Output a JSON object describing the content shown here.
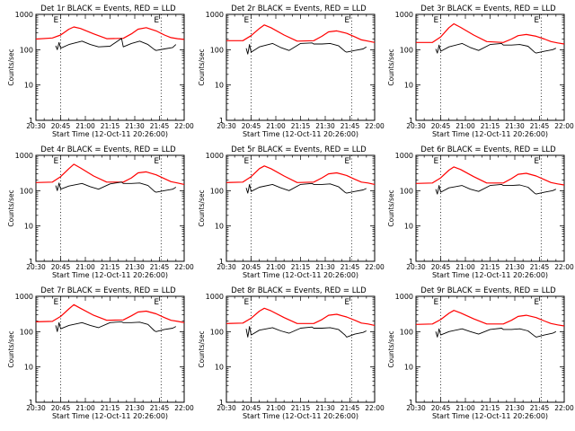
{
  "colors": {
    "events": "#000000",
    "lld": "#ff0000",
    "axis": "#000000",
    "background": "#ffffff"
  },
  "chart_data": {
    "type": "line",
    "scale": "log",
    "ylim": [
      1,
      1000
    ],
    "ylabel": "Counts/sec",
    "xlabel": "Start Time (12-Oct-11 20:26:00)",
    "x_ticks": [
      "20:30",
      "20:45",
      "21:00",
      "21:15",
      "21:30",
      "21:45",
      "22:00"
    ],
    "x_tick_minutes": [
      0,
      15,
      30,
      45,
      60,
      75,
      90
    ],
    "x_range_minutes": [
      0,
      90
    ],
    "y_ticks": [
      "1",
      "10",
      "100",
      "1000"
    ],
    "y_tick_values": [
      1,
      10,
      100,
      1000
    ],
    "event_markers_minutes": [
      15,
      76
    ],
    "event_marker_label": "E",
    "lld_times": [
      0,
      10,
      15,
      20,
      23,
      27,
      35,
      43,
      53,
      58,
      62,
      67,
      73,
      78,
      82,
      86,
      90
    ],
    "events_times": [
      12,
      13,
      14,
      15,
      20,
      28,
      33,
      38,
      45,
      52,
      53,
      58,
      63,
      68,
      72,
      73,
      78,
      83,
      85
    ],
    "panels": [
      {
        "title": "Det 1r BLACK = Events, RED = LLD",
        "lld": [
          200,
          215,
          260,
          380,
          440,
          400,
          280,
          205,
          210,
          280,
          380,
          420,
          340,
          260,
          220,
          205,
          195
        ],
        "events": [
          130,
          100,
          160,
          110,
          140,
          175,
          140,
          120,
          125,
          210,
          120,
          150,
          175,
          140,
          100,
          95,
          105,
          115,
          140
        ]
      },
      {
        "title": "Det 2r BLACK = Events, RED = LLD",
        "lld": [
          180,
          180,
          250,
          400,
          500,
          420,
          260,
          175,
          180,
          240,
          320,
          340,
          290,
          230,
          190,
          175,
          160
        ],
        "events": [
          110,
          75,
          140,
          85,
          120,
          150,
          115,
          95,
          150,
          155,
          145,
          145,
          150,
          130,
          90,
          85,
          95,
          105,
          120
        ]
      },
      {
        "title": "Det 3r BLACK = Events, RED = LLD",
        "lld": [
          160,
          160,
          230,
          420,
          540,
          430,
          260,
          170,
          160,
          200,
          250,
          270,
          240,
          200,
          170,
          155,
          145
        ],
        "events": [
          105,
          80,
          135,
          90,
          120,
          150,
          115,
          95,
          140,
          150,
          135,
          135,
          140,
          125,
          85,
          80,
          90,
          100,
          110
        ]
      },
      {
        "title": "Det 4r BLACK = Events, RED = LLD",
        "lld": [
          170,
          175,
          250,
          420,
          560,
          440,
          260,
          175,
          175,
          230,
          320,
          340,
          280,
          220,
          180,
          165,
          150
        ],
        "events": [
          140,
          100,
          165,
          110,
          135,
          160,
          130,
          110,
          155,
          175,
          160,
          160,
          165,
          140,
          95,
          90,
          100,
          110,
          125
        ]
      },
      {
        "title": "Det 5r BLACK = Events, RED = LLD",
        "lld": [
          170,
          175,
          250,
          420,
          500,
          420,
          260,
          170,
          175,
          230,
          300,
          320,
          270,
          210,
          175,
          165,
          150
        ],
        "events": [
          120,
          85,
          150,
          95,
          125,
          150,
          120,
          100,
          150,
          160,
          150,
          150,
          155,
          130,
          90,
          85,
          95,
          105,
          115
        ]
      },
      {
        "title": "Det 6r BLACK = Events, RED = LLD",
        "lld": [
          160,
          165,
          230,
          380,
          470,
          400,
          250,
          165,
          165,
          220,
          290,
          310,
          260,
          205,
          170,
          155,
          145
        ],
        "events": [
          110,
          80,
          140,
          90,
          120,
          140,
          110,
          95,
          140,
          150,
          140,
          140,
          145,
          125,
          85,
          80,
          90,
          100,
          110
        ]
      },
      {
        "title": "Det 7r BLACK = Events, RED = LLD",
        "lld": [
          190,
          195,
          270,
          440,
          580,
          460,
          290,
          210,
          215,
          280,
          360,
          380,
          320,
          250,
          210,
          195,
          180
        ],
        "events": [
          150,
          100,
          180,
          120,
          150,
          180,
          150,
          130,
          180,
          190,
          180,
          180,
          185,
          160,
          105,
          100,
          115,
          125,
          140
        ]
      },
      {
        "title": "Det 8r BLACK = Events, RED = LLD",
        "lld": [
          170,
          175,
          240,
          380,
          460,
          390,
          250,
          170,
          170,
          220,
          290,
          310,
          260,
          210,
          175,
          165,
          150
        ],
        "events": [
          120,
          70,
          140,
          80,
          110,
          130,
          105,
          90,
          125,
          135,
          125,
          125,
          130,
          115,
          80,
          70,
          85,
          95,
          105
        ]
      },
      {
        "title": "Det 9r BLACK = Events, RED = LLD",
        "lld": [
          160,
          165,
          220,
          330,
          400,
          340,
          230,
          165,
          165,
          210,
          270,
          290,
          250,
          200,
          170,
          155,
          145
        ],
        "events": [
          100,
          70,
          120,
          80,
          100,
          120,
          100,
          85,
          115,
          125,
          115,
          115,
          120,
          105,
          75,
          70,
          80,
          90,
          100
        ]
      }
    ]
  }
}
